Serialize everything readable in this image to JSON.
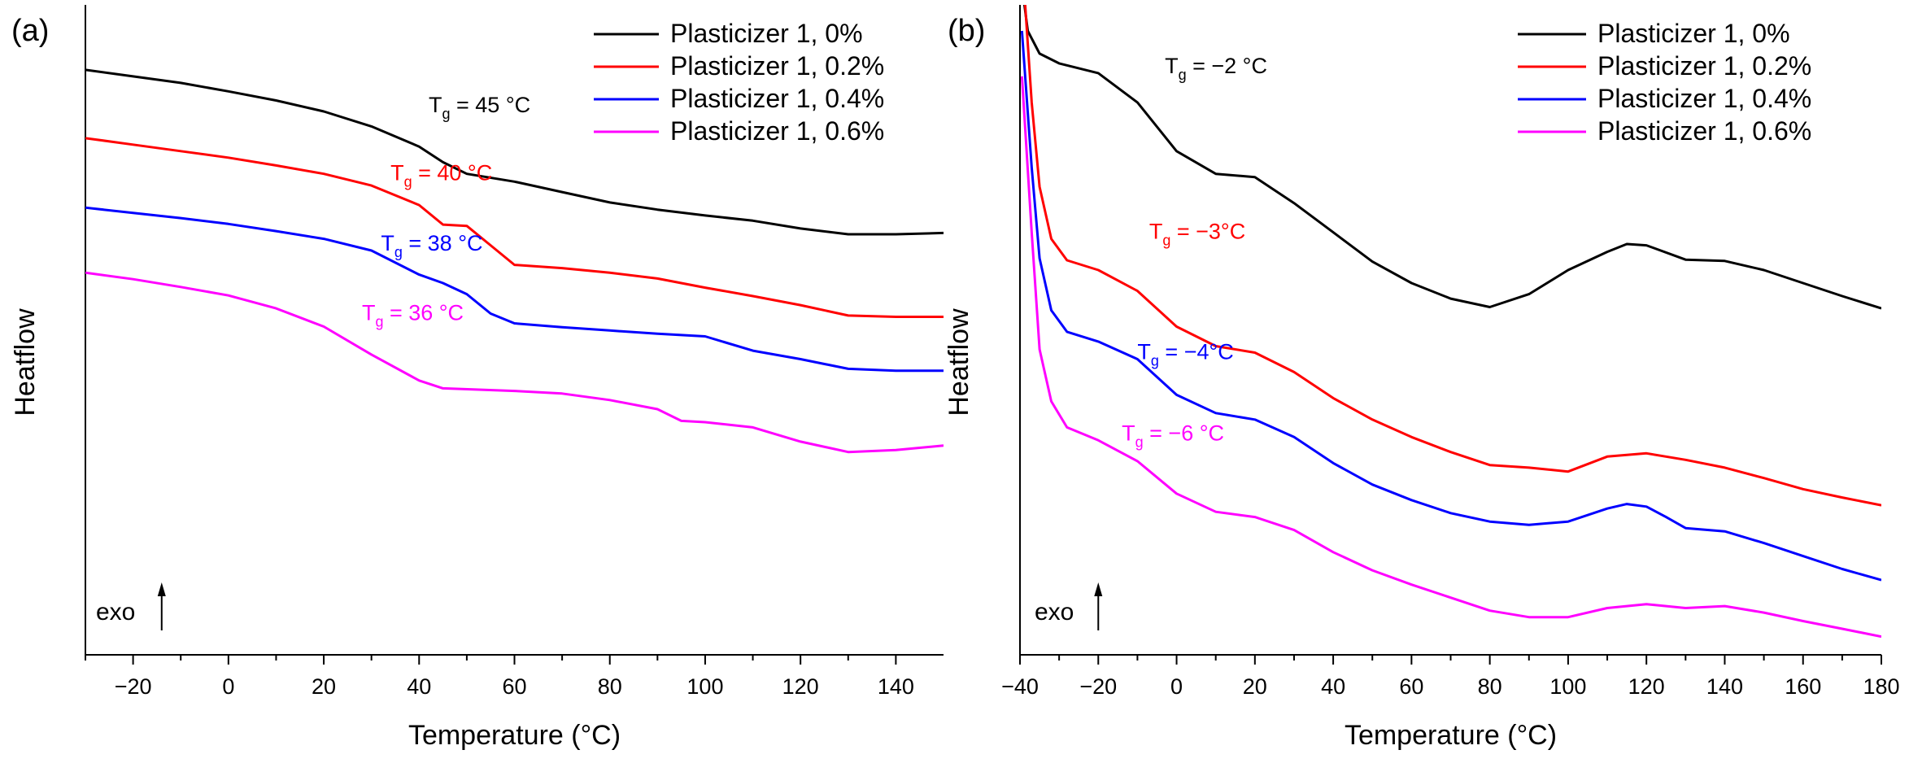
{
  "chart_data": [
    {
      "panel_label": "(a)",
      "type": "line",
      "xlabel": "Temperature (°C)",
      "ylabel": "Heatflow",
      "xlim": [
        -30,
        150
      ],
      "ylim": [
        0,
        10
      ],
      "xticks": [
        -20,
        0,
        20,
        40,
        60,
        80,
        100,
        120,
        140
      ],
      "exo_label": "exo",
      "exo_x": -14,
      "series": [
        {
          "name": "Plasticizer 1, 0%",
          "color": "#000000",
          "points": [
            [
              -30,
              9.0
            ],
            [
              -20,
              8.9
            ],
            [
              -10,
              8.8
            ],
            [
              0,
              8.67
            ],
            [
              10,
              8.53
            ],
            [
              20,
              8.36
            ],
            [
              30,
              8.13
            ],
            [
              40,
              7.82
            ],
            [
              45,
              7.58
            ],
            [
              50,
              7.4
            ],
            [
              60,
              7.28
            ],
            [
              70,
              7.12
            ],
            [
              80,
              6.96
            ],
            [
              90,
              6.85
            ],
            [
              100,
              6.76
            ],
            [
              110,
              6.68
            ],
            [
              120,
              6.56
            ],
            [
              130,
              6.47
            ],
            [
              140,
              6.47
            ],
            [
              150,
              6.49
            ]
          ],
          "tg_label": "T",
          "tg_sub": "g",
          "tg_text": " = 45 °C",
          "tg_x": 42,
          "tg_y": 8.35
        },
        {
          "name": "Plasticizer 1, 0.2%",
          "color": "#ff0000",
          "points": [
            [
              -30,
              7.95
            ],
            [
              -20,
              7.85
            ],
            [
              -10,
              7.75
            ],
            [
              0,
              7.65
            ],
            [
              10,
              7.53
            ],
            [
              20,
              7.4
            ],
            [
              30,
              7.22
            ],
            [
              40,
              6.92
            ],
            [
              45,
              6.62
            ],
            [
              50,
              6.6
            ],
            [
              55,
              6.3
            ],
            [
              60,
              6.0
            ],
            [
              70,
              5.95
            ],
            [
              80,
              5.88
            ],
            [
              90,
              5.79
            ],
            [
              100,
              5.65
            ],
            [
              110,
              5.52
            ],
            [
              120,
              5.38
            ],
            [
              130,
              5.22
            ],
            [
              140,
              5.2
            ],
            [
              150,
              5.2
            ]
          ],
          "tg_label": "T",
          "tg_sub": "g",
          "tg_text": " = 40 °C",
          "tg_x": 34,
          "tg_y": 7.3
        },
        {
          "name": "Plasticizer 1, 0.4%",
          "color": "#0000ff",
          "points": [
            [
              -30,
              6.88
            ],
            [
              -20,
              6.8
            ],
            [
              -10,
              6.72
            ],
            [
              0,
              6.63
            ],
            [
              10,
              6.52
            ],
            [
              20,
              6.4
            ],
            [
              30,
              6.22
            ],
            [
              40,
              5.85
            ],
            [
              45,
              5.72
            ],
            [
              50,
              5.55
            ],
            [
              55,
              5.25
            ],
            [
              60,
              5.1
            ],
            [
              70,
              5.04
            ],
            [
              80,
              4.99
            ],
            [
              90,
              4.94
            ],
            [
              100,
              4.9
            ],
            [
              110,
              4.68
            ],
            [
              120,
              4.55
            ],
            [
              130,
              4.4
            ],
            [
              140,
              4.37
            ],
            [
              150,
              4.37
            ]
          ],
          "tg_label": "T",
          "tg_sub": "g",
          "tg_text": " = 38 °C",
          "tg_x": 32,
          "tg_y": 6.22
        },
        {
          "name": "Plasticizer 1, 0.6%",
          "color": "#ff00ff",
          "points": [
            [
              -30,
              5.88
            ],
            [
              -20,
              5.78
            ],
            [
              -10,
              5.66
            ],
            [
              0,
              5.53
            ],
            [
              10,
              5.33
            ],
            [
              20,
              5.05
            ],
            [
              30,
              4.62
            ],
            [
              40,
              4.22
            ],
            [
              45,
              4.1
            ],
            [
              60,
              4.06
            ],
            [
              70,
              4.02
            ],
            [
              80,
              3.92
            ],
            [
              90,
              3.78
            ],
            [
              95,
              3.6
            ],
            [
              100,
              3.58
            ],
            [
              110,
              3.5
            ],
            [
              120,
              3.28
            ],
            [
              130,
              3.12
            ],
            [
              140,
              3.15
            ],
            [
              150,
              3.22
            ]
          ],
          "tg_label": "T",
          "tg_sub": "g",
          "tg_text": " = 36 °C",
          "tg_x": 28,
          "tg_y": 5.15
        }
      ]
    },
    {
      "panel_label": "(b)",
      "type": "line",
      "xlabel": "Temperature (°C)",
      "ylabel": "Heatflow",
      "xlim": [
        -40,
        180
      ],
      "ylim": [
        0,
        10
      ],
      "xticks": [
        -40,
        -20,
        0,
        20,
        40,
        60,
        80,
        100,
        120,
        140,
        160,
        180
      ],
      "exo_label": "exo",
      "exo_x": -20,
      "series": [
        {
          "name": "Plasticizer 1, 0%",
          "color": "#000000",
          "points": [
            [
              -39.5,
              10.3
            ],
            [
              -38,
              9.6
            ],
            [
              -35,
              9.25
            ],
            [
              -30,
              9.1
            ],
            [
              -20,
              8.95
            ],
            [
              -10,
              8.5
            ],
            [
              0,
              7.75
            ],
            [
              10,
              7.4
            ],
            [
              20,
              7.35
            ],
            [
              30,
              6.95
            ],
            [
              40,
              6.5
            ],
            [
              50,
              6.05
            ],
            [
              60,
              5.72
            ],
            [
              70,
              5.48
            ],
            [
              80,
              5.35
            ],
            [
              90,
              5.55
            ],
            [
              100,
              5.92
            ],
            [
              110,
              6.2
            ],
            [
              115,
              6.32
            ],
            [
              120,
              6.3
            ],
            [
              130,
              6.08
            ],
            [
              140,
              6.06
            ],
            [
              150,
              5.92
            ],
            [
              160,
              5.72
            ],
            [
              170,
              5.52
            ],
            [
              180,
              5.33
            ]
          ],
          "tg_label": "T",
          "tg_sub": "g",
          "tg_text": " = −2 °C",
          "tg_x": -3,
          "tg_y": 8.95
        },
        {
          "name": "Plasticizer 1, 0.2%",
          "color": "#ff0000",
          "points": [
            [
              -39,
              10.3
            ],
            [
              -37,
              8.5
            ],
            [
              -35,
              7.2
            ],
            [
              -32,
              6.4
            ],
            [
              -28,
              6.07
            ],
            [
              -20,
              5.92
            ],
            [
              -10,
              5.6
            ],
            [
              0,
              5.05
            ],
            [
              10,
              4.75
            ],
            [
              20,
              4.65
            ],
            [
              30,
              4.35
            ],
            [
              40,
              3.95
            ],
            [
              50,
              3.62
            ],
            [
              60,
              3.35
            ],
            [
              70,
              3.12
            ],
            [
              80,
              2.92
            ],
            [
              90,
              2.88
            ],
            [
              100,
              2.82
            ],
            [
              110,
              3.05
            ],
            [
              120,
              3.1
            ],
            [
              130,
              3.0
            ],
            [
              140,
              2.88
            ],
            [
              150,
              2.72
            ],
            [
              160,
              2.55
            ],
            [
              170,
              2.42
            ],
            [
              180,
              2.3
            ]
          ],
          "tg_label": "T",
          "tg_sub": "g",
          "tg_text": " = −3°C",
          "tg_x": -7,
          "tg_y": 6.4
        },
        {
          "name": "Plasticizer 1, 0.4%",
          "color": "#0000ff",
          "points": [
            [
              -39.5,
              9.6
            ],
            [
              -37,
              7.5
            ],
            [
              -35,
              6.1
            ],
            [
              -32,
              5.3
            ],
            [
              -28,
              4.97
            ],
            [
              -20,
              4.82
            ],
            [
              -10,
              4.55
            ],
            [
              0,
              4.0
            ],
            [
              10,
              3.72
            ],
            [
              20,
              3.62
            ],
            [
              30,
              3.35
            ],
            [
              40,
              2.95
            ],
            [
              50,
              2.62
            ],
            [
              60,
              2.38
            ],
            [
              70,
              2.18
            ],
            [
              80,
              2.05
            ],
            [
              90,
              2.0
            ],
            [
              100,
              2.05
            ],
            [
              110,
              2.25
            ],
            [
              115,
              2.32
            ],
            [
              120,
              2.28
            ],
            [
              125,
              2.12
            ],
            [
              130,
              1.95
            ],
            [
              140,
              1.9
            ],
            [
              150,
              1.72
            ],
            [
              160,
              1.52
            ],
            [
              170,
              1.32
            ],
            [
              180,
              1.15
            ]
          ],
          "tg_label": "T",
          "tg_sub": "g",
          "tg_text": " = −4°C",
          "tg_x": -10,
          "tg_y": 4.55
        },
        {
          "name": "Plasticizer 1, 0.6%",
          "color": "#ff00ff",
          "points": [
            [
              -39.5,
              8.9
            ],
            [
              -37,
              6.5
            ],
            [
              -35,
              4.7
            ],
            [
              -32,
              3.9
            ],
            [
              -28,
              3.5
            ],
            [
              -20,
              3.3
            ],
            [
              -10,
              2.98
            ],
            [
              0,
              2.48
            ],
            [
              10,
              2.2
            ],
            [
              20,
              2.12
            ],
            [
              30,
              1.92
            ],
            [
              40,
              1.58
            ],
            [
              50,
              1.3
            ],
            [
              60,
              1.08
            ],
            [
              70,
              0.88
            ],
            [
              80,
              0.68
            ],
            [
              90,
              0.58
            ],
            [
              100,
              0.58
            ],
            [
              110,
              0.72
            ],
            [
              120,
              0.78
            ],
            [
              130,
              0.72
            ],
            [
              140,
              0.75
            ],
            [
              150,
              0.65
            ],
            [
              160,
              0.52
            ],
            [
              170,
              0.4
            ],
            [
              180,
              0.28
            ]
          ],
          "tg_label": "T",
          "tg_sub": "g",
          "tg_text": " = −6 °C",
          "tg_x": -14,
          "tg_y": 3.3
        }
      ]
    }
  ]
}
